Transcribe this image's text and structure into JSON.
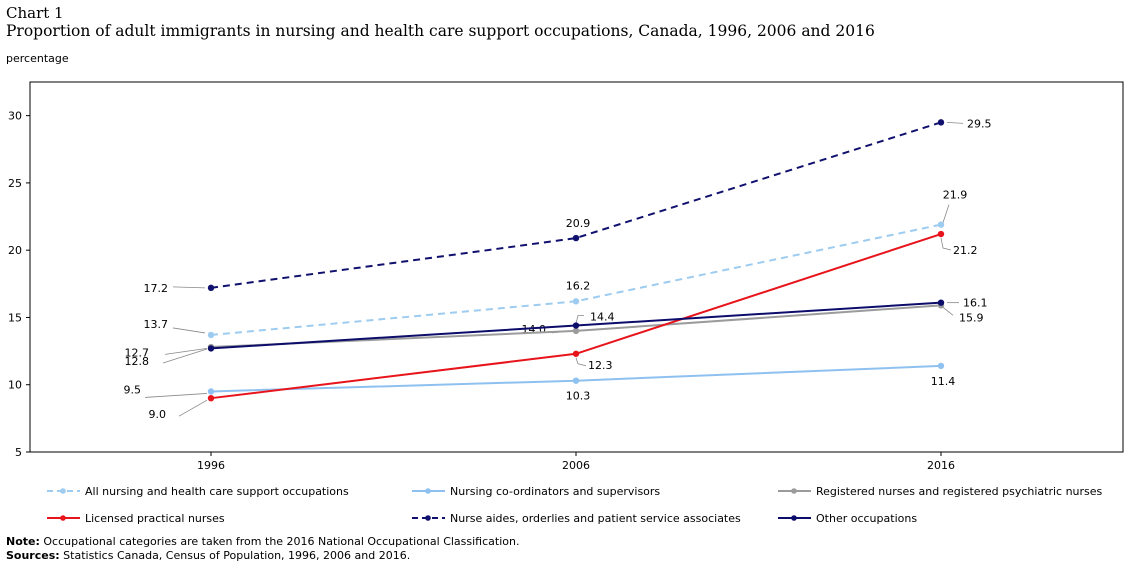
{
  "header": {
    "chart_label": "Chart 1",
    "title": "Proportion of adult immigrants in nursing and health care support occupations, Canada, 1996, 2006 and 2016",
    "unit": "percentage"
  },
  "notes": {
    "note_label": "Note:",
    "note_text": " Occupational categories are taken from the 2016 National Occupational Classification.",
    "sources_label": "Sources:",
    "sources_text": " Statistics Canada, Census of Population, 1996, 2006 and 2016."
  },
  "chart_data": {
    "type": "line",
    "title": "Proportion of adult immigrants in nursing and health care support occupations, Canada, 1996, 2006 and 2016",
    "ylabel": "percentage",
    "xlabel": "",
    "categories": [
      "1996",
      "2006",
      "2016"
    ],
    "ylim": [
      5,
      32.5
    ],
    "yticks": [
      5,
      10,
      15,
      20,
      25,
      30
    ],
    "grid": false,
    "legend_position": "bottom",
    "series": [
      {
        "name": "All nursing and health care support occupations",
        "values": [
          13.7,
          16.2,
          21.9
        ],
        "color": "#9dccf0",
        "dashed": true,
        "labels": [
          "13.7",
          "16.2",
          "21.9"
        ]
      },
      {
        "name": "Nursing co-ordinators and supervisors",
        "values": [
          9.5,
          10.3,
          11.4
        ],
        "color": "#8fc1f0",
        "dashed": false,
        "labels": [
          "9.5",
          "10.3",
          "11.4"
        ]
      },
      {
        "name": "Registered nurses and registered psychiatric nurses",
        "values": [
          12.8,
          14.0,
          15.9
        ],
        "color": "#9b9b9b",
        "dashed": false,
        "labels": [
          "12.8",
          "14.0",
          "15.9"
        ]
      },
      {
        "name": "Licensed practical nurses",
        "values": [
          9.0,
          12.3,
          21.2
        ],
        "color": "#e8141b",
        "dashed": false,
        "labels": [
          "9.0",
          "12.3",
          "21.2"
        ]
      },
      {
        "name": "Nurse aides, orderlies and patient service associates",
        "values": [
          17.2,
          20.9,
          29.5
        ],
        "color": "#10106e",
        "dashed": true,
        "labels": [
          "17.2",
          "20.9",
          "29.5"
        ]
      },
      {
        "name": "Other occupations",
        "values": [
          12.7,
          14.4,
          16.1
        ],
        "color": "#0c0c6a",
        "dashed": false,
        "labels": [
          "12.7",
          "14.4",
          "16.1"
        ]
      }
    ]
  }
}
